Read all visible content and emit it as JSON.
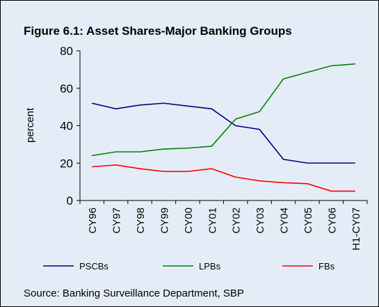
{
  "chart_data": {
    "type": "line",
    "title": "Figure  6.1: Asset Shares-Major Banking Groups",
    "y_label": "percent",
    "source": "Source: Banking Surveillance Department, SBP",
    "categories": [
      "CY96",
      "CY97",
      "CY98",
      "CY99",
      "CY00",
      "CY01",
      "CY02",
      "CY03",
      "CY04",
      "CY05",
      "CY06",
      "H1-CY07"
    ],
    "series": [
      {
        "name": "PSCBs",
        "color": "#00007f",
        "values": [
          52,
          49,
          51,
          52,
          50.5,
          49,
          40,
          38,
          22,
          20,
          20,
          20
        ]
      },
      {
        "name": "LPBs",
        "color": "#008000",
        "values": [
          24,
          26,
          26,
          27.5,
          28,
          29,
          43.5,
          47.5,
          65,
          68.5,
          72,
          73
        ]
      },
      {
        "name": "FBs",
        "color": "#ff0000",
        "values": [
          18,
          19,
          17,
          15.5,
          15.5,
          17,
          12.5,
          10.5,
          9.5,
          9,
          5,
          5
        ]
      }
    ],
    "ylim": [
      0,
      80
    ],
    "yticks": [
      0,
      20,
      40,
      60,
      80
    ]
  }
}
